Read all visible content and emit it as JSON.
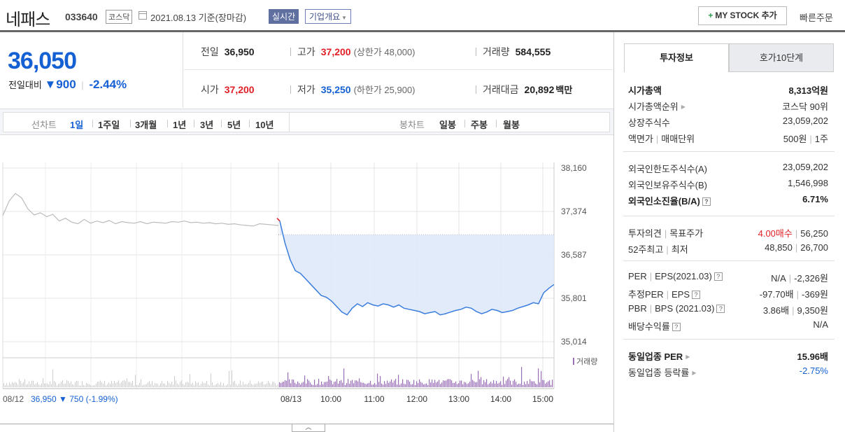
{
  "header": {
    "stock_name": "네패스",
    "stock_code": "033640",
    "market": "코스닥",
    "date_text": "2021.08.13 기준(장마감)",
    "realtime_label": "실시간",
    "company_label": "기업개요",
    "mystock_label": "MY STOCK 추가",
    "quick_order_label": "빠른주문"
  },
  "price": {
    "current": "36,050",
    "change_label": "전일대비",
    "change_value": "900",
    "change_pct": "-2.44%"
  },
  "summary": {
    "prev_label": "전일",
    "prev_value": "36,950",
    "high_label": "고가",
    "high_value": "37,200",
    "upper_limit": "(상한가 48,000)",
    "volume_label": "거래량",
    "volume_value": "584,555",
    "open_label": "시가",
    "open_value": "37,200",
    "low_label": "저가",
    "low_value": "35,250",
    "lower_limit": "(하한가 25,900)",
    "amount_label": "거래대금",
    "amount_value": "20,892",
    "amount_unit": "백만"
  },
  "chart_tabs": {
    "line_label": "선차트",
    "line_tabs": [
      "1일",
      "1주일",
      "3개월",
      "1년",
      "3년",
      "5년",
      "10년"
    ],
    "candle_label": "봉차트",
    "candle_tabs": [
      "일봉",
      "주봉",
      "월봉"
    ]
  },
  "chart_data": {
    "type": "line",
    "y_ticks": [
      "38,160",
      "37,374",
      "36,587",
      "35,801",
      "35,014"
    ],
    "ylim": [
      35014,
      38160
    ],
    "x_ticks": [
      "08/13",
      "10:00",
      "11:00",
      "12:00",
      "13:00",
      "14:00",
      "15:00"
    ],
    "volume_legend": "거래량",
    "prev_day_label": "08/12",
    "prev_day_info": "36,950 ▼ 750 (-1.99%)",
    "prev_close": 36950,
    "series": [
      {
        "values": [
          37300,
          37560,
          37700,
          37620,
          37420,
          37310,
          37350,
          37280,
          37320,
          37200,
          37250,
          37180,
          37150,
          37230,
          37160,
          37200,
          37170,
          37210,
          37150,
          37190,
          37170,
          37160,
          37190,
          37150,
          37180,
          37170,
          37160,
          37190,
          37180,
          37200,
          37170,
          37180,
          37160,
          37170,
          37150,
          37160,
          37140,
          37150,
          37130,
          37120,
          37110,
          37150,
          37140,
          37130,
          37120
        ]
      },
      {
        "values": [
          37200,
          36800,
          36500,
          36300,
          36250,
          36150,
          36050,
          35950,
          35850,
          35820,
          35750,
          35650,
          35550,
          35500,
          35620,
          35700,
          35650,
          35720,
          35680,
          35660,
          35700,
          35680,
          35640,
          35680,
          35620,
          35600,
          35580,
          35560,
          35520,
          35540,
          35560,
          35500,
          35520,
          35550,
          35580,
          35600,
          35640,
          35620,
          35560,
          35520,
          35550,
          35600,
          35580,
          35540,
          35560,
          35580,
          35620,
          35650,
          35680,
          35720,
          35700,
          35900,
          35980,
          36050
        ]
      }
    ]
  },
  "right_panel": {
    "tab_invest": "투자정보",
    "tab_hoga": "호가10단계",
    "g1": [
      {
        "k": "시가총액",
        "v": "8,313억원",
        "bold": true
      },
      {
        "k": "시가총액순위",
        "v": "코스닥 90위",
        "arrow": true
      },
      {
        "k": "상장주식수",
        "v": "23,059,202"
      },
      {
        "k": "액면가",
        "k2": "매매단위",
        "v": "500원",
        "v2": "1주"
      }
    ],
    "g2": [
      {
        "k": "외국인한도주식수(A)",
        "v": "23,059,202"
      },
      {
        "k": "외국인보유주식수(B)",
        "v": "1,546,998"
      },
      {
        "k": "외국인소진율(B/A)",
        "v": "6.71%",
        "bold": true,
        "q": true
      }
    ],
    "g3": [
      {
        "k": "투자의견",
        "k2": "목표주가",
        "v_red": "4.00매수",
        "v2": "56,250"
      },
      {
        "k": "52주최고",
        "k2": "최저",
        "v": "48,850",
        "v2": "26,700"
      }
    ],
    "g4": [
      {
        "k": "PER",
        "k2": "EPS(2021.03)",
        "v": "N/A",
        "v2": "-2,326원",
        "q": true
      },
      {
        "k": "추정PER",
        "k2": "EPS",
        "v": "-97.70배",
        "v2": "-369원",
        "q": true
      },
      {
        "k": "PBR",
        "k2": "BPS (2021.03)",
        "v": "3.86배",
        "v2": "9,350원",
        "q": true
      },
      {
        "k": "배당수익률",
        "v": "N/A",
        "q": true
      }
    ],
    "g5": [
      {
        "k": "동일업종 PER",
        "v": "15.96배",
        "bold": true,
        "arrow": true
      },
      {
        "k": "동일업종 등락률",
        "v": "-2.75%",
        "blue": true,
        "arrow": true
      }
    ]
  }
}
